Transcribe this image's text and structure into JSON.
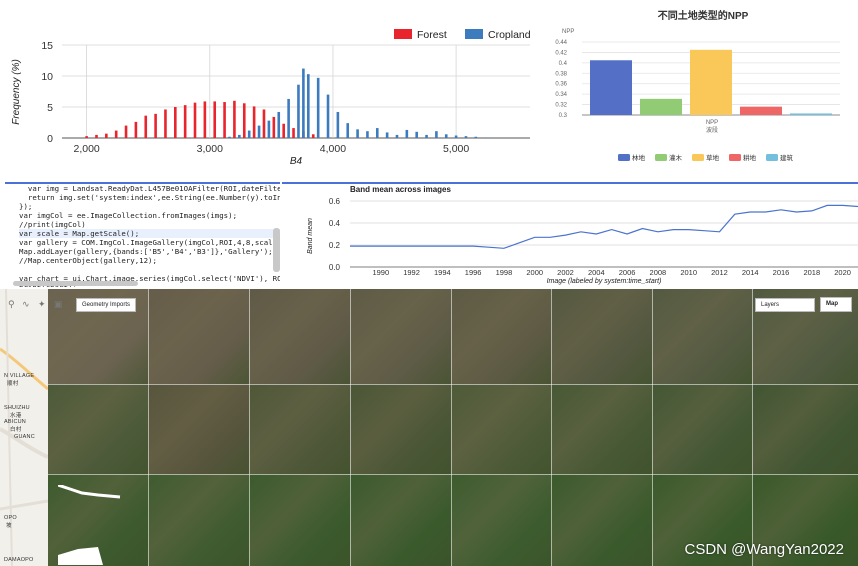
{
  "histogram": {
    "y_label": "Frequency (%)",
    "x_label": "B4",
    "x_ticks": [
      "2,000",
      "3,000",
      "4,000",
      "5,000"
    ],
    "y_ticks": [
      "0",
      "5",
      "10",
      "15"
    ],
    "legend": [
      {
        "label": "Forest",
        "color": "#e8242c"
      },
      {
        "label": "Cropland",
        "color": "#3d7bbf"
      }
    ]
  },
  "npp_chart": {
    "title": "不同土地类型的NPP",
    "y_axis_name": "NPP",
    "y_ticks": [
      "0.3",
      "0.32",
      "0.34",
      "0.36",
      "0.38",
      "0.4",
      "0.42",
      "0.44"
    ],
    "x_tick": "NPP",
    "x_axis_name": "波段",
    "legend": [
      {
        "label": "林地",
        "color": "#5470c6"
      },
      {
        "label": "灌木",
        "color": "#91cc75"
      },
      {
        "label": "草地",
        "color": "#fac858"
      },
      {
        "label": "耕地",
        "color": "#ee6666"
      },
      {
        "label": "建筑",
        "color": "#73c0de"
      }
    ]
  },
  "code_editor": {
    "lines": [
      {
        "text": "  var img = Landsat.ReadyDat.L457Be01OAFilter(ROI,dateFilter,",
        "hl": false
      },
      {
        "text": "  return img.set('system:index',ee.String(ee.Number(y).toInt()",
        "hl": false
      },
      {
        "text": "});",
        "hl": false
      },
      {
        "text": "var imgCol = ee.ImageCollection.fromImages(imgs);",
        "hl": false
      },
      {
        "text": "//print(imgCol)",
        "hl": false
      },
      {
        "text": "var scale = Map.getScale();",
        "hl": true
      },
      {
        "text": "var gallery = COM.ImgCol.ImageGallery(imgCol,ROI,4,8,scale);",
        "hl": false
      },
      {
        "text": "Map.addLayer(gallery,{bands:['B5','B4','B3']},'Gallery');",
        "hl": false
      },
      {
        "text": "//Map.centerObject(gallery,12);",
        "hl": false
      },
      {
        "text": "",
        "hl": false
      },
      {
        "text": "var chart = ui.Chart.image.series(imgCol.select('NDVI'), ROI, ",
        "hl": false
      },
      {
        "text": "print(chart);",
        "hl": false
      }
    ]
  },
  "band_chart": {
    "title": "Band mean across images",
    "y_label": "Band mean",
    "x_label": "Image (labeled by system:time_start)",
    "y_ticks": [
      "0.0",
      "0.2",
      "0.4",
      "0.6"
    ],
    "x_ticks": [
      "1990",
      "1992",
      "1994",
      "1996",
      "1998",
      "2000",
      "2002",
      "2004",
      "2006",
      "2008",
      "2010",
      "2012",
      "2014",
      "2016",
      "2018",
      "2020"
    ],
    "line_color": "#4a73d0"
  },
  "map_panel": {
    "geometry_imports_label": "Geometry Imports",
    "layers_label": "Layers",
    "map_label": "Map",
    "place_labels": [
      "N VILLAGE",
      "顺村",
      "SHUIZHU",
      "水港",
      "ABICUN",
      "白村",
      "GUANC",
      "OPO",
      "坡",
      "DAMAOPO"
    ],
    "watermark": "CSDN @WangYan2022"
  },
  "chart_data": [
    {
      "type": "bar",
      "title": "",
      "xlabel": "B4",
      "ylabel": "Frequency (%)",
      "xlim": [
        1800,
        5600
      ],
      "ylim": [
        0,
        15
      ],
      "series": [
        {
          "name": "Forest",
          "x": [
            2000,
            2080,
            2160,
            2240,
            2320,
            2400,
            2480,
            2560,
            2640,
            2720,
            2800,
            2880,
            2960,
            3040,
            3120,
            3200,
            3280,
            3360,
            3440,
            3520,
            3600,
            3680,
            3760,
            3840
          ],
          "values": [
            0.3,
            0.5,
            0.7,
            1.2,
            2.0,
            2.6,
            3.6,
            3.9,
            4.6,
            5.0,
            5.3,
            5.7,
            5.9,
            5.9,
            5.8,
            6.0,
            5.6,
            5.1,
            4.6,
            3.4,
            2.3,
            1.6,
            1.1,
            0.6
          ]
        },
        {
          "name": "Cropland",
          "x": [
            3160,
            3240,
            3320,
            3400,
            3480,
            3560,
            3640,
            3720,
            3760,
            3800,
            3880,
            3960,
            4040,
            4120,
            4200,
            4280,
            4360,
            4440,
            4520,
            4600,
            4680,
            4760,
            4840,
            4920,
            5000,
            5080,
            5160,
            5240
          ],
          "values": [
            0.2,
            0.5,
            1.2,
            2.0,
            2.8,
            4.2,
            6.3,
            8.6,
            11.2,
            10.3,
            9.7,
            7.0,
            4.2,
            2.4,
            1.4,
            1.1,
            1.6,
            0.9,
            0.5,
            1.3,
            1.0,
            0.5,
            1.1,
            0.6,
            0.4,
            0.3,
            0.2,
            0.1
          ]
        }
      ]
    },
    {
      "type": "bar",
      "title": "不同土地类型的NPP",
      "xlabel": "波段",
      "ylabel": "NPP",
      "ylim": [
        0.3,
        0.44
      ],
      "categories": [
        "NPP"
      ],
      "series": [
        {
          "name": "林地",
          "values": [
            0.405
          ]
        },
        {
          "name": "灌木",
          "values": [
            0.331
          ]
        },
        {
          "name": "草地",
          "values": [
            0.425
          ]
        },
        {
          "name": "耕地",
          "values": [
            0.316
          ]
        },
        {
          "name": "建筑",
          "values": [
            0.303
          ]
        }
      ]
    },
    {
      "type": "line",
      "title": "Band mean across images",
      "xlabel": "Image (labeled by system:time_start)",
      "ylabel": "Band mean",
      "xlim": [
        1988,
        2021
      ],
      "ylim": [
        0,
        0.6
      ],
      "series": [
        {
          "name": "",
          "x": [
            1988,
            1989,
            1990,
            1991,
            1992,
            1993,
            1994,
            1995,
            1996,
            1997,
            1998,
            1999,
            2000,
            2001,
            2002,
            2003,
            2004,
            2005,
            2006,
            2007,
            2008,
            2009,
            2010,
            2011,
            2012,
            2013,
            2014,
            2015,
            2016,
            2017,
            2018,
            2019,
            2020,
            2021
          ],
          "values": [
            0.19,
            0.19,
            0.19,
            0.19,
            0.19,
            0.19,
            0.19,
            0.19,
            0.19,
            0.18,
            0.17,
            0.22,
            0.27,
            0.27,
            0.29,
            0.32,
            0.3,
            0.34,
            0.3,
            0.35,
            0.32,
            0.34,
            0.34,
            0.33,
            0.32,
            0.48,
            0.5,
            0.5,
            0.52,
            0.5,
            0.51,
            0.56,
            0.56,
            0.55
          ]
        }
      ]
    }
  ]
}
